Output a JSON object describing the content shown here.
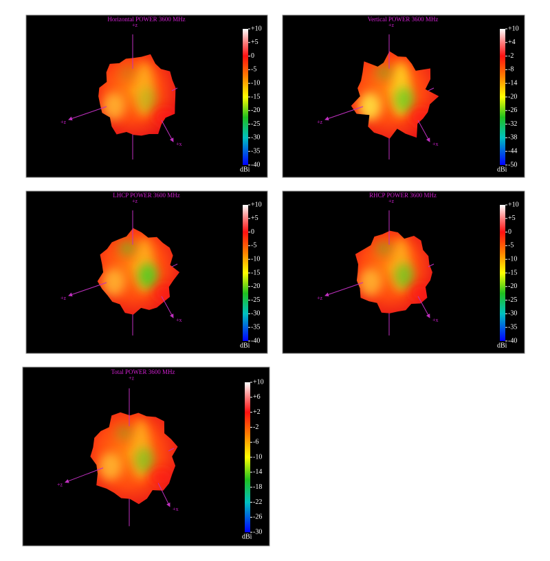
{
  "chart_data": [
    {
      "type": "surface3d",
      "title": "Horizontal POWER 3600  MHz",
      "colorbar_unit": "dBi",
      "clim": [
        -40,
        10
      ],
      "colorbar_ticks": [
        {
          "value": 10,
          "label": "+10"
        },
        {
          "value": 5,
          "label": "+5"
        },
        0,
        -5,
        -10,
        -15,
        -20,
        -25,
        -30,
        -35,
        -40
      ],
      "axis_labels": [
        "+z",
        "+z",
        "+x"
      ]
    },
    {
      "type": "surface3d",
      "title": "Vertical POWER 3600  MHz",
      "colorbar_unit": "dBi",
      "clim": [
        -50,
        10
      ],
      "colorbar_ticks": [
        {
          "value": 10,
          "label": "+10"
        },
        {
          "value": 4,
          "label": "+4"
        },
        -2,
        -8,
        -14,
        -20,
        -26,
        -32,
        -38,
        -44,
        -50
      ],
      "axis_labels": [
        "+z",
        "+z",
        "+x"
      ]
    },
    {
      "type": "surface3d",
      "title": "LHCP POWER 3600  MHz",
      "colorbar_unit": "dBi",
      "clim": [
        -40,
        10
      ],
      "colorbar_ticks": [
        {
          "value": 10,
          "label": "+10"
        },
        {
          "value": 5,
          "label": "+5"
        },
        0,
        -5,
        -10,
        -15,
        -20,
        -25,
        -30,
        -35,
        -40
      ],
      "axis_labels": [
        "+z",
        "+z",
        "+x"
      ]
    },
    {
      "type": "surface3d",
      "title": "RHCP POWER 3600  MHz",
      "colorbar_unit": "dBi",
      "clim": [
        -40,
        10
      ],
      "colorbar_ticks": [
        {
          "value": 10,
          "label": "+10"
        },
        {
          "value": 5,
          "label": "+5"
        },
        0,
        -5,
        -10,
        -15,
        -20,
        -25,
        -30,
        -35,
        -40
      ],
      "axis_labels": [
        "+z",
        "+z",
        "+x"
      ]
    },
    {
      "type": "surface3d",
      "title": "Total POWER 3600  MHz",
      "colorbar_unit": "dBi",
      "clim": [
        -30,
        10
      ],
      "colorbar_ticks": [
        {
          "value": 10,
          "label": "+10"
        },
        {
          "value": 6,
          "label": "+6"
        },
        {
          "value": 2,
          "label": "+2"
        },
        -2,
        -6,
        -10,
        -14,
        -18,
        -22,
        -26,
        -30
      ],
      "axis_labels": [
        "+z",
        "+z",
        "+x"
      ]
    }
  ]
}
